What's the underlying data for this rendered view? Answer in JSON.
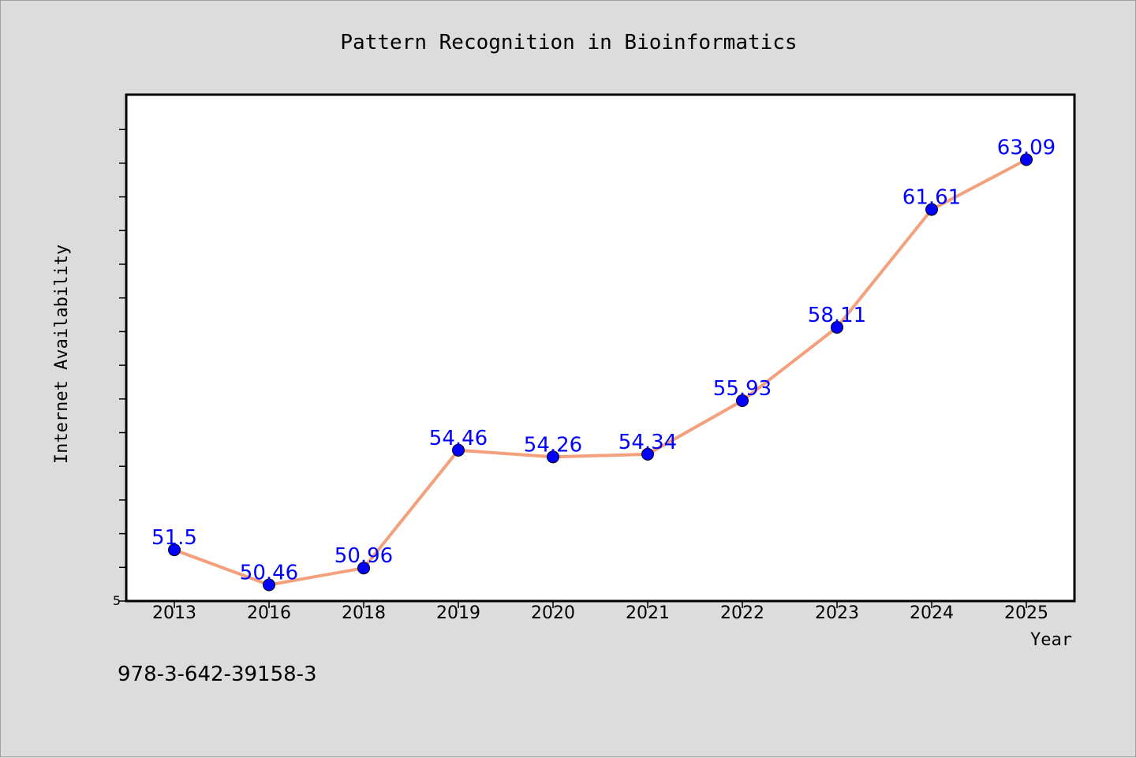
{
  "chart_data": {
    "type": "line",
    "title": "Pattern Recognition in Bioinformatics",
    "xlabel": "Year",
    "ylabel": "Internet Availability",
    "categories": [
      "2013",
      "2016",
      "2018",
      "2019",
      "2020",
      "2021",
      "2022",
      "2023",
      "2024",
      "2025"
    ],
    "series": [
      {
        "values": [
          51.5,
          50.46,
          50.96,
          54.46,
          54.26,
          54.34,
          55.93,
          58.11,
          61.61,
          63.09
        ],
        "data_labels": [
          "51.5",
          "50.46",
          "50.96",
          "54.46",
          "54.26",
          "54.34",
          "55.93",
          "58.11",
          "61.61",
          "63.09"
        ],
        "line_color": "#f4a07c",
        "marker_color": "#0000ff"
      }
    ],
    "ylim": [
      49.98,
      65.02
    ],
    "y_tick_label": "5",
    "grid": false,
    "legend": "none"
  },
  "footer": {
    "isbn": "978-3-642-39158-3"
  },
  "colors": {
    "background": "#dcdcdc",
    "plot_background": "#ffffff",
    "line": "#f4a07c",
    "marker": "#0000ff",
    "data_label": "#0000ff"
  }
}
